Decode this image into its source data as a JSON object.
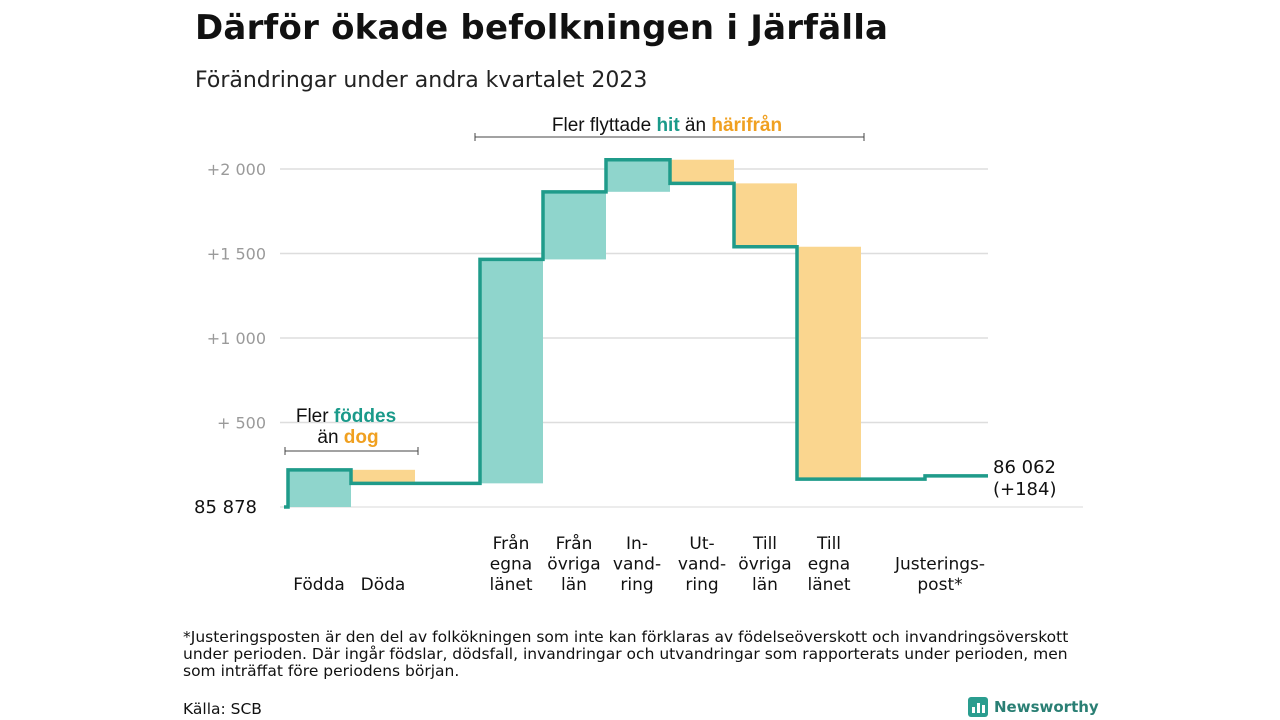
{
  "header": {
    "title": "Därför ökade befolkningen i Järfälla",
    "subtitle": "Förändringar under andra kvartalet 2023"
  },
  "chart_data": {
    "type": "waterfall",
    "start_value": 85878,
    "start_label": "85  878",
    "end_value": 86062,
    "end_label": "86 062",
    "end_change_label": "(+184)",
    "ylim": [
      -30,
      2100
    ],
    "yticks": [
      {
        "value": 500,
        "label": "+  500"
      },
      {
        "value": 1000,
        "label": "+1  000"
      },
      {
        "value": 1500,
        "label": "+1  500"
      },
      {
        "value": 2000,
        "label": "+2  000"
      }
    ],
    "steps": [
      {
        "name": "Födda",
        "label_lines": [
          "Födda"
        ],
        "value": 220,
        "direction": "in"
      },
      {
        "name": "Döda",
        "label_lines": [
          "Döda"
        ],
        "value": -80,
        "direction": "out"
      },
      {
        "name": "Från egna länet",
        "label_lines": [
          "Från",
          "egna",
          "länet"
        ],
        "value": 1325,
        "direction": "in"
      },
      {
        "name": "Från övriga län",
        "label_lines": [
          "Från",
          "övriga",
          "län"
        ],
        "value": 400,
        "direction": "in"
      },
      {
        "name": "Invandring",
        "label_lines": [
          "In-",
          "vand-",
          "ring"
        ],
        "value": 190,
        "direction": "in"
      },
      {
        "name": "Utvandring",
        "label_lines": [
          "Ut-",
          "vand-",
          "ring"
        ],
        "value": -140,
        "direction": "out"
      },
      {
        "name": "Till övriga län",
        "label_lines": [
          "Till",
          "övriga",
          "län"
        ],
        "value": -375,
        "direction": "out"
      },
      {
        "name": "Till egna länet",
        "label_lines": [
          "Till",
          "egna",
          "länet"
        ],
        "value": -1375,
        "direction": "out"
      },
      {
        "name": "Justeringspost",
        "label_lines": [
          "Justerings-",
          "post*"
        ],
        "value": 19,
        "direction": "adjust"
      }
    ],
    "annotations": {
      "births": {
        "line1_prefix": "Fler ",
        "line1_highlight": "föddes",
        "line2_prefix": "än ",
        "line2_highlight": "dog"
      },
      "migration": {
        "prefix": "Fler flyttade ",
        "highlight_in": "hit",
        "middle": " än ",
        "highlight_out": "härifrån"
      }
    },
    "colors": {
      "in_fill": "#8fd5cc",
      "out_fill": "#fad68f",
      "line": "#1f9b8a",
      "grid": "#dddddd",
      "teal_text": "#1a9a8a",
      "orange_text": "#f0a020"
    },
    "grid": true
  },
  "footer": {
    "footnote": "*Justeringsposten är den del av folkökningen som inte kan förklaras av födelseöverskott och invandringsöverskott under perioden. Där ingår födslar, dödsfall, invandringar och utvandringar som rapporterats under perioden, men som inträffat före periodens början.",
    "source": "Källa: SCB",
    "brand": "Newsworthy"
  }
}
